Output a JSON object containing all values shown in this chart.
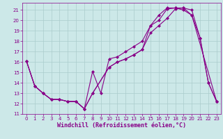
{
  "xlabel": "Windchill (Refroidissement éolien,°C)",
  "ylabel": "",
  "xlim": [
    -0.5,
    23.5
  ],
  "ylim": [
    11,
    21.7
  ],
  "yticks": [
    11,
    12,
    13,
    14,
    15,
    16,
    17,
    18,
    19,
    20,
    21
  ],
  "xticks": [
    0,
    1,
    2,
    3,
    4,
    5,
    6,
    7,
    8,
    9,
    10,
    11,
    12,
    13,
    14,
    15,
    16,
    17,
    18,
    19,
    20,
    21,
    22,
    23
  ],
  "bg_color": "#cce8e8",
  "grid_color": "#aacccc",
  "line_color": "#880088",
  "line1_x": [
    0,
    1,
    2,
    3,
    4,
    5,
    6,
    7,
    8,
    9,
    10,
    11,
    12,
    13,
    14,
    15,
    16,
    17,
    18,
    19,
    20,
    21,
    22,
    23
  ],
  "line1_y": [
    16.1,
    13.7,
    13.0,
    12.4,
    12.4,
    12.2,
    12.2,
    11.5,
    15.1,
    13.0,
    16.3,
    16.5,
    17.0,
    17.5,
    18.0,
    19.5,
    20.0,
    21.1,
    21.2,
    21.0,
    20.5,
    18.3,
    14.0,
    12.2
  ],
  "line2_x": [
    0,
    1,
    2,
    3,
    4,
    5,
    6,
    7,
    8,
    10,
    11,
    12,
    13,
    14,
    15,
    16,
    17,
    18,
    19,
    20,
    21,
    22,
    23
  ],
  "line2_y": [
    16.1,
    13.7,
    13.0,
    12.4,
    12.4,
    12.2,
    12.2,
    11.5,
    13.0,
    15.5,
    16.0,
    16.3,
    16.7,
    17.2,
    18.8,
    19.5,
    20.2,
    21.1,
    21.2,
    21.0,
    18.3,
    14.0,
    12.2
  ],
  "line3_x": [
    0,
    1,
    2,
    3,
    4,
    5,
    6,
    7,
    8,
    10,
    11,
    12,
    13,
    14,
    15,
    16,
    17,
    18,
    19,
    20,
    23
  ],
  "line3_y": [
    16.1,
    13.7,
    13.0,
    12.4,
    12.4,
    12.2,
    12.2,
    11.5,
    13.0,
    15.5,
    16.0,
    16.3,
    16.7,
    17.2,
    19.5,
    20.5,
    21.2,
    21.2,
    21.2,
    20.5,
    12.2
  ],
  "marker_size": 2.5,
  "linewidth": 0.8,
  "tick_fontsize": 5.0,
  "xlabel_fontsize": 6.0
}
